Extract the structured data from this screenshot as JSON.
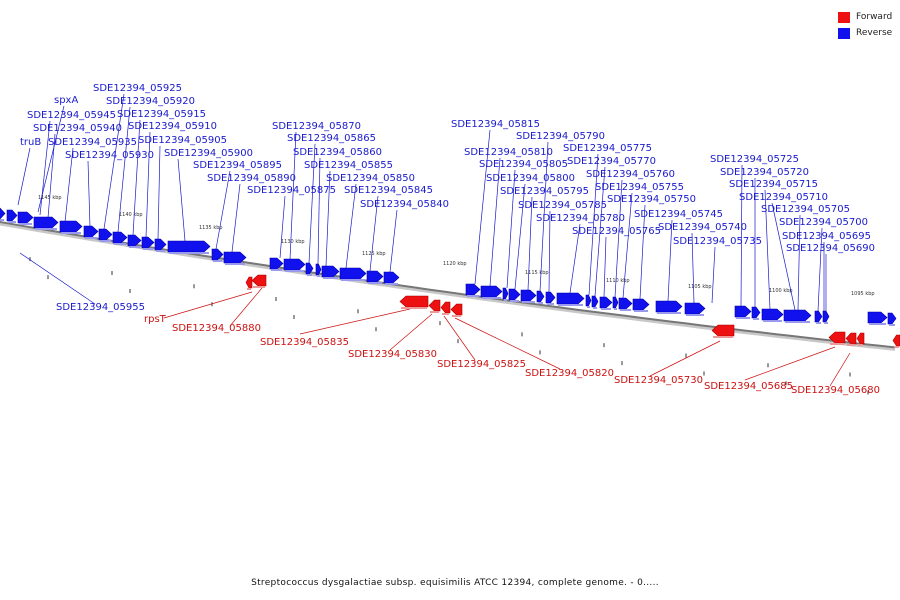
{
  "legend": {
    "forward": {
      "label": "Forward",
      "color": "#ee1111"
    },
    "reverse": {
      "label": "Reverse",
      "color": "#1111ee"
    }
  },
  "caption": "Streptococcus dysgalactiae subsp. equisimilis ATCC 12394, complete genome. - 0.....",
  "ticks": [
    "1145 kbp",
    "1140 kbp",
    "1135 kbp",
    "1130 kbp",
    "1125 kbp",
    "1120 kbp",
    "1115 kbp",
    "1110 kbp",
    "1105 kbp",
    "1100 kbp",
    "1095 kbp"
  ],
  "genes_reverse": [
    "truB",
    "spxA",
    "SDE12394_05945",
    "SDE12394_05940",
    "SDE12394_05935",
    "SDE12394_05930",
    "SDE12394_05925",
    "SDE12394_05920",
    "SDE12394_05915",
    "SDE12394_05910",
    "SDE12394_05905",
    "SDE12394_05900",
    "SDE12394_05895",
    "SDE12394_05890",
    "SDE12394_05875",
    "SDE12394_05870",
    "SDE12394_05865",
    "SDE12394_05860",
    "SDE12394_05855",
    "SDE12394_05850",
    "SDE12394_05845",
    "SDE12394_05840",
    "SDE12394_05815",
    "SDE12394_05810",
    "SDE12394_05805",
    "SDE12394_05800",
    "SDE12394_05795",
    "SDE12394_05790",
    "SDE12394_05785",
    "SDE12394_05780",
    "SDE12394_05775",
    "SDE12394_05770",
    "SDE12394_05765",
    "SDE12394_05760",
    "SDE12394_05755",
    "SDE12394_05750",
    "SDE12394_05745",
    "SDE12394_05740",
    "SDE12394_05735",
    "SDE12394_05725",
    "SDE12394_05720",
    "SDE12394_05715",
    "SDE12394_05710",
    "SDE12394_05705",
    "SDE12394_05700",
    "SDE12394_05695",
    "SDE12394_05690",
    "SDE12394_05955"
  ],
  "genes_forward": [
    "rpsT",
    "SDE12394_05880",
    "SDE12394_05835",
    "SDE12394_05830",
    "SDE12394_05825",
    "SDE12394_05820",
    "SDE12394_05730",
    "SDE12394_05685",
    "SDE12394_05680"
  ]
}
